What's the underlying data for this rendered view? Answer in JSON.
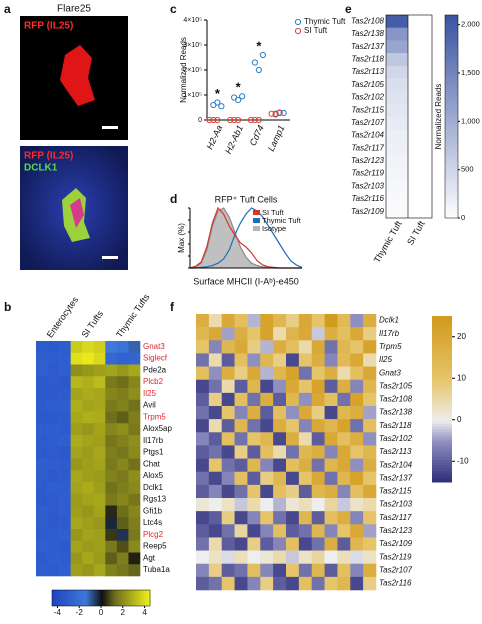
{
  "panels": {
    "a": {
      "label": "a",
      "title": "Flare25",
      "top_stain": "RFP (IL25)",
      "bottom_stains": [
        "RFP (IL25)",
        "DCLK1"
      ]
    },
    "b": {
      "label": "b",
      "groups": [
        "Enterocytes",
        "SI Tufts",
        "Thymic Tufts"
      ],
      "rows": [
        {
          "gene": "Gnat3",
          "color": "#e0262b",
          "values": [
            -3.2,
            -3.3,
            -3.1,
            3.5,
            3.8,
            3.6,
            -1.5,
            -1.8,
            -1.2
          ]
        },
        {
          "gene": "Siglecf",
          "color": "#e0262b",
          "values": [
            -3,
            -3.1,
            -3,
            4,
            4.2,
            3.8,
            -2.5,
            -2.8,
            -2.6
          ]
        },
        {
          "gene": "Pde2a",
          "color": "#111111",
          "values": [
            -3,
            -3.2,
            -3,
            2,
            2.2,
            2.4,
            2.5,
            2.2,
            2.6
          ]
        },
        {
          "gene": "Plcb2",
          "color": "#e0262b",
          "values": [
            -3.3,
            -3.2,
            -3.4,
            3,
            2.8,
            3.1,
            1.5,
            1.2,
            1.8
          ]
        },
        {
          "gene": "Il25",
          "color": "#e0262b",
          "values": [
            -3.3,
            -3.3,
            -3.2,
            2.5,
            2.7,
            2.6,
            1.8,
            1.6,
            2
          ]
        },
        {
          "gene": "Avil",
          "color": "#111111",
          "values": [
            -3.2,
            -3,
            -3.1,
            2.8,
            2.5,
            2.6,
            1.5,
            1.7,
            1.3
          ]
        },
        {
          "gene": "Trpm5",
          "color": "#e0262b",
          "values": [
            -3.4,
            -3.3,
            -3.2,
            2.6,
            2.8,
            2.7,
            1.2,
            1,
            1.6
          ]
        },
        {
          "gene": "Alox5ap",
          "color": "#111111",
          "values": [
            -3.1,
            -3,
            -3.2,
            2.4,
            2.2,
            2.5,
            1.8,
            2,
            1.5
          ]
        },
        {
          "gene": "Il17rb",
          "color": "#111111",
          "values": [
            -3.2,
            -3.1,
            -3,
            2.7,
            2.5,
            2.4,
            1.4,
            1.7,
            2
          ]
        },
        {
          "gene": "Ptgs1",
          "color": "#111111",
          "values": [
            -3.3,
            -3.2,
            -3.4,
            2.5,
            2.3,
            2.6,
            1.6,
            1.4,
            1.9
          ]
        },
        {
          "gene": "Chat",
          "color": "#111111",
          "values": [
            -3,
            -3.1,
            -3.2,
            2.2,
            2.4,
            2.5,
            1.5,
            1.8,
            1.3
          ]
        },
        {
          "gene": "Alox5",
          "color": "#111111",
          "values": [
            -3.1,
            -3.3,
            -3.2,
            2.6,
            2.4,
            2.3,
            1.7,
            1.5,
            2
          ]
        },
        {
          "gene": "Dclk1",
          "color": "#111111",
          "values": [
            -3.2,
            -3,
            -3.1,
            2.5,
            2.7,
            2.4,
            1.3,
            1.6,
            1.9
          ]
        },
        {
          "gene": "Rgs13",
          "color": "#111111",
          "values": [
            -3.3,
            -3.2,
            -3,
            2.3,
            2.5,
            2.6,
            1.5,
            1.8,
            1.4
          ]
        },
        {
          "gene": "Gfi1b",
          "color": "#111111",
          "values": [
            -3,
            -3.2,
            -3.1,
            2.4,
            2.2,
            2.5,
            0.3,
            1.2,
            1.8
          ]
        },
        {
          "gene": "Ltc4s",
          "color": "#111111",
          "values": [
            -3.1,
            -3.3,
            -3.2,
            2.6,
            2.4,
            2.2,
            -0.3,
            1,
            1.6
          ]
        },
        {
          "gene": "Plcg2",
          "color": "#e0262b",
          "values": [
            -3.2,
            -3.1,
            -3,
            2.2,
            2.5,
            2.4,
            0.5,
            -0.5,
            1.5
          ]
        },
        {
          "gene": "Reep5",
          "color": "#111111",
          "values": [
            -3,
            -3.1,
            -3.3,
            2.5,
            2.3,
            2.4,
            1.5,
            0.8,
            1.9
          ]
        },
        {
          "gene": "Agt",
          "color": "#111111",
          "values": [
            -3.2,
            -3,
            -3.1,
            2.2,
            2.6,
            2.3,
            1,
            1.6,
            0.2
          ]
        },
        {
          "gene": "Tuba1a",
          "color": "#111111",
          "values": [
            -3.1,
            -3.2,
            -3,
            2.4,
            2.2,
            2.6,
            1.7,
            1.4,
            1.1
          ]
        }
      ],
      "colorbar": {
        "lim": [
          -4.5,
          4.5
        ],
        "ticks": [
          -4,
          -2,
          0,
          2,
          4
        ]
      }
    },
    "c": {
      "label": "c",
      "type": "scatter",
      "y_label": "Normalized Reads",
      "categories": [
        "H2-Aa",
        "H2-Ab1",
        "Cd74",
        "Lamp1"
      ],
      "significance": [
        "*",
        "*",
        "*",
        null
      ],
      "series": [
        {
          "name": "Thymic Tuft",
          "color": "#2a7fc9",
          "values": [
            [
              60000,
              70000,
              55000
            ],
            [
              90000,
              80000,
              95000
            ],
            [
              230000,
              200000,
              260000
            ],
            [
              25000,
              30000,
              28000
            ]
          ]
        },
        {
          "name": "SI Tuft",
          "color": "#e0443a",
          "values": [
            [
              0,
              0,
              0
            ],
            [
              0,
              0,
              0
            ],
            [
              0,
              0,
              0
            ],
            [
              25000,
              22000,
              28000
            ]
          ]
        }
      ],
      "ylim": [
        0,
        400000
      ],
      "yticks": [
        0,
        {
          "value": 100000,
          "label": "1×10⁵"
        },
        {
          "value": 200000,
          "label": "2×10⁵"
        },
        {
          "value": 300000,
          "label": "3×10⁵"
        },
        {
          "value": 400000,
          "label": "4×10⁵"
        }
      ]
    },
    "d": {
      "label": "d",
      "type": "line",
      "title": "RFP⁺ Tuft Cells",
      "x_label": "Surface MHCII (I-Aᵇ)-e450",
      "y_label": "Max (%)",
      "x": [
        0,
        1,
        2,
        3,
        4,
        5,
        6,
        7,
        8,
        9,
        10,
        11,
        12,
        13,
        14,
        15,
        16,
        17,
        18,
        19,
        20
      ],
      "xlim": [
        0,
        20
      ],
      "series": [
        {
          "name": "SI Tuft",
          "color": "#d9342b",
          "values": [
            0,
            3,
            10,
            35,
            75,
            100,
            90,
            70,
            55,
            42,
            35,
            25,
            12,
            5,
            2,
            1,
            0,
            0,
            0,
            0,
            0
          ]
        },
        {
          "name": "Thymic Tuft",
          "color": "#1f6fb8",
          "values": [
            0,
            0,
            1,
            2,
            4,
            8,
            15,
            30,
            55,
            75,
            90,
            100,
            95,
            85,
            70,
            55,
            40,
            25,
            12,
            5,
            1
          ]
        },
        {
          "name": "Isotype",
          "color": "#b5b5b5",
          "values": [
            0,
            2,
            8,
            30,
            70,
            95,
            100,
            85,
            60,
            35,
            18,
            8,
            4,
            2,
            1,
            0,
            0,
            0,
            0,
            0,
            0
          ]
        }
      ],
      "ylim": [
        0,
        100
      ],
      "yticks": [
        0,
        20,
        40,
        60,
        80,
        100
      ]
    },
    "e": {
      "label": "e",
      "columns": [
        "Thymic Tuft",
        "SI Tuft"
      ],
      "rows": [
        {
          "gene": "Tas2r108",
          "values": [
            2000,
            0
          ]
        },
        {
          "gene": "Tas2r138",
          "values": [
            1300,
            0
          ]
        },
        {
          "gene": "Tas2r137",
          "values": [
            1100,
            0
          ]
        },
        {
          "gene": "Tas2r118",
          "values": [
            700,
            0
          ]
        },
        {
          "gene": "Tas2r113",
          "values": [
            500,
            0
          ]
        },
        {
          "gene": "Tas2r105",
          "values": [
            400,
            0
          ]
        },
        {
          "gene": "Tas2r102",
          "values": [
            350,
            0
          ]
        },
        {
          "gene": "Tas2r115",
          "values": [
            300,
            0
          ]
        },
        {
          "gene": "Tas2r107",
          "values": [
            250,
            0
          ]
        },
        {
          "gene": "Tas2r104",
          "values": [
            200,
            0
          ]
        },
        {
          "gene": "Tas2r117",
          "values": [
            180,
            0
          ]
        },
        {
          "gene": "Tas2r123",
          "values": [
            150,
            0
          ]
        },
        {
          "gene": "Tas2r119",
          "values": [
            120,
            0
          ]
        },
        {
          "gene": "Tas2r103",
          "values": [
            100,
            0
          ]
        },
        {
          "gene": "Tas2r116",
          "values": [
            80,
            0
          ]
        },
        {
          "gene": "Tas2r109",
          "values": [
            60,
            0
          ]
        }
      ],
      "colorbar": {
        "label": "Normalized Reads",
        "lim": [
          0,
          2100
        ],
        "ticks": [
          0,
          500,
          {
            "value": 1000,
            "label": "1,000"
          },
          {
            "value": 1500,
            "label": "1,500"
          },
          {
            "value": 2000,
            "label": "2,000"
          }
        ]
      }
    },
    "f": {
      "label": "f",
      "rows": [
        {
          "gene": "Dclk1",
          "values": [
            18,
            5,
            20,
            12,
            -3,
            22,
            15,
            8,
            20,
            10,
            25,
            14,
            -5,
            18
          ]
        },
        {
          "gene": "Il17rb",
          "values": [
            15,
            20,
            -4,
            18,
            10,
            22,
            5,
            16,
            20,
            -2,
            18,
            12,
            20,
            8
          ]
        },
        {
          "gene": "Trpm5",
          "values": [
            10,
            -6,
            15,
            20,
            8,
            -3,
            18,
            12,
            5,
            20,
            -8,
            15,
            10,
            22
          ]
        },
        {
          "gene": "Il25",
          "values": [
            -8,
            5,
            -10,
            12,
            -5,
            15,
            8,
            -12,
            10,
            18,
            -6,
            14,
            20,
            5
          ]
        },
        {
          "gene": "Gnat3",
          "values": [
            12,
            -5,
            18,
            8,
            20,
            -3,
            15,
            22,
            -8,
            10,
            18,
            5,
            12,
            20
          ]
        },
        {
          "gene": "Tas2r105",
          "values": [
            -12,
            -8,
            5,
            -10,
            15,
            -12,
            -5,
            20,
            10,
            22,
            -10,
            18,
            -6,
            15
          ]
        },
        {
          "gene": "Tas2r108",
          "values": [
            -10,
            8,
            -12,
            12,
            -8,
            18,
            -10,
            15,
            -5,
            20,
            12,
            -8,
            22,
            10
          ]
        },
        {
          "gene": "Tas2r138",
          "values": [
            -8,
            -12,
            10,
            -6,
            18,
            -10,
            12,
            -5,
            20,
            8,
            -12,
            15,
            18,
            -4
          ]
        },
        {
          "gene": "Tas2r118",
          "values": [
            -12,
            5,
            -10,
            15,
            -8,
            -12,
            18,
            10,
            -6,
            20,
            15,
            22,
            -8,
            12
          ]
        },
        {
          "gene": "Tas2r102",
          "values": [
            -6,
            -10,
            12,
            -8,
            10,
            15,
            -12,
            18,
            5,
            -10,
            20,
            12,
            18,
            -5
          ]
        },
        {
          "gene": "Tas2r113",
          "values": [
            -10,
            -8,
            -12,
            8,
            -10,
            12,
            5,
            -8,
            15,
            18,
            -6,
            20,
            10,
            15
          ]
        },
        {
          "gene": "Tas2r104",
          "values": [
            -12,
            10,
            -8,
            -10,
            15,
            -6,
            -12,
            12,
            18,
            -8,
            15,
            20,
            -5,
            18
          ]
        },
        {
          "gene": "Tas2r137",
          "values": [
            -8,
            -12,
            -6,
            12,
            -10,
            8,
            15,
            -12,
            10,
            20,
            -8,
            15,
            22,
            10
          ]
        },
        {
          "gene": "Tas2r115",
          "values": [
            -10,
            -6,
            -12,
            -8,
            10,
            -12,
            12,
            8,
            -10,
            15,
            18,
            -6,
            12,
            20
          ]
        },
        {
          "gene": "Tas2r103",
          "values": [
            2,
            0,
            3,
            -2,
            5,
            0,
            -3,
            2,
            4,
            0,
            6,
            -2,
            3,
            5
          ]
        },
        {
          "gene": "Tas2r117",
          "values": [
            -12,
            -10,
            8,
            -12,
            -6,
            10,
            -8,
            -12,
            15,
            -10,
            12,
            18,
            -6,
            10
          ]
        },
        {
          "gene": "Tas2r123",
          "values": [
            -10,
            -12,
            -8,
            6,
            -12,
            -6,
            12,
            -10,
            -8,
            15,
            -6,
            10,
            20,
            -4
          ]
        },
        {
          "gene": "Tas2r109",
          "values": [
            -8,
            5,
            -10,
            -12,
            8,
            -10,
            -6,
            12,
            -12,
            -8,
            18,
            -10,
            15,
            10
          ]
        },
        {
          "gene": "Tas2r119",
          "values": [
            0,
            3,
            -1,
            4,
            0,
            2,
            5,
            -2,
            3,
            6,
            0,
            4,
            -1,
            3
          ]
        },
        {
          "gene": "Tas2r107",
          "values": [
            -6,
            8,
            -10,
            -8,
            12,
            -6,
            -12,
            10,
            -8,
            15,
            -10,
            12,
            -6,
            18
          ]
        },
        {
          "gene": "Tas2r116",
          "values": [
            -10,
            -8,
            10,
            -12,
            -6,
            8,
            -10,
            -12,
            12,
            -8,
            10,
            15,
            -12,
            8
          ]
        }
      ],
      "colorbar": {
        "lim": [
          -15,
          25
        ],
        "ticks": [
          20,
          10,
          0,
          -10
        ]
      }
    }
  }
}
